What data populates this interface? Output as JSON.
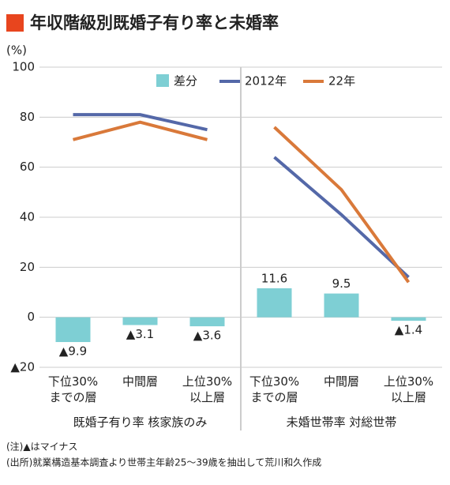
{
  "chart_data": {
    "type": "bar-line",
    "title": "年収階級別既婚子有り率と未婚率",
    "y_unit": "(%)",
    "groups": [
      "既婚子有り率 核家族のみ",
      "未婚世帯率 対総世帯"
    ],
    "categories": [
      [
        [
          "下位30%",
          "までの層"
        ],
        [
          "中間層"
        ],
        [
          "上位30%",
          "以上層"
        ]
      ],
      [
        [
          "下位30%",
          "までの層"
        ],
        [
          "中間層"
        ],
        [
          "上位30%",
          "以上層"
        ]
      ]
    ],
    "bars": {
      "name": "差分",
      "color": "#7ecfd4",
      "values": [
        [
          -9.9,
          -3.1,
          -3.6
        ],
        [
          11.6,
          9.5,
          -1.4
        ]
      ],
      "value_labels": [
        [
          "▲9.9",
          "▲3.1",
          "▲3.6"
        ],
        [
          "11.6",
          "9.5",
          "▲1.4"
        ]
      ]
    },
    "series": [
      {
        "name": "2012年",
        "color": "#5468a8",
        "values": [
          [
            81,
            81,
            75
          ],
          [
            64,
            41,
            16
          ]
        ]
      },
      {
        "name": "22年",
        "color": "#d9793a",
        "values": [
          [
            71,
            78,
            71
          ],
          [
            76,
            51,
            14
          ]
        ]
      }
    ],
    "ylim": [
      -20,
      100
    ],
    "yticks": [
      {
        "value": -20,
        "label": "▲20"
      },
      0,
      20,
      40,
      60,
      80,
      100
    ],
    "grid": true,
    "notes": [
      "(注)▲はマイナス",
      "(出所)就業構造基本調査より世帯主年齢25〜39歳を抽出して荒川和久作成"
    ]
  }
}
